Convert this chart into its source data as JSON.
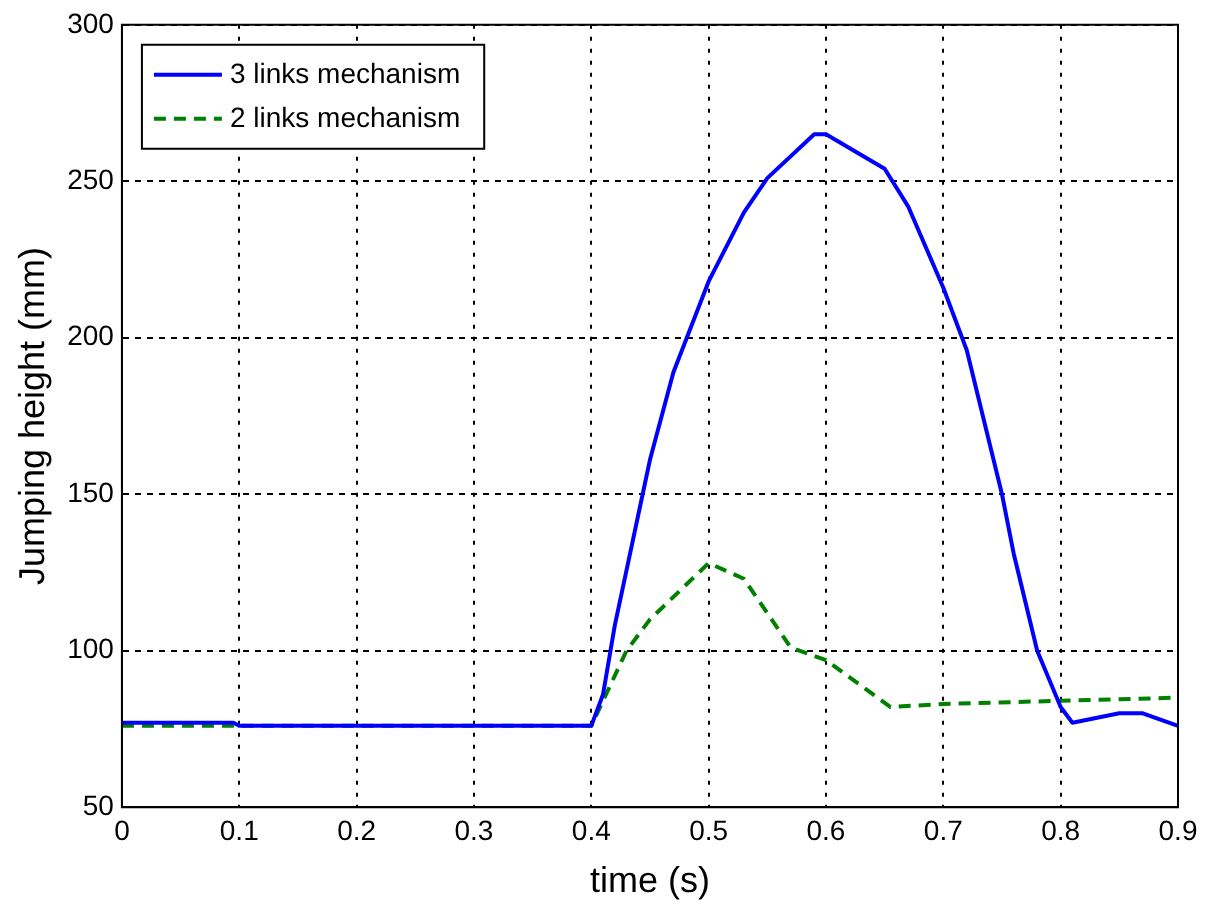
{
  "chart_data": {
    "type": "line",
    "xlabel": "time (s)",
    "ylabel": "Jumping height (mm)",
    "xlim": [
      0,
      0.9
    ],
    "xticks": [
      {
        "value": 0,
        "label": "0"
      },
      {
        "value": 0.1,
        "label": "0.1"
      },
      {
        "value": 0.2,
        "label": "0.2"
      },
      {
        "value": 0.3,
        "label": "0.3"
      },
      {
        "value": 0.4,
        "label": "0.4"
      },
      {
        "value": 0.5,
        "label": "0.5"
      },
      {
        "value": 0.6,
        "label": "0.6"
      },
      {
        "value": 0.7,
        "label": "0.7"
      },
      {
        "value": 0.8,
        "label": "0.8"
      },
      {
        "value": 0.9,
        "label": "0.9"
      }
    ],
    "ylim": [
      50,
      300
    ],
    "yticks": [
      50,
      100,
      150,
      200,
      250,
      300
    ],
    "grid": true,
    "legend": "top left",
    "marker": "none",
    "series": [
      {
        "name": "3 links mechanism",
        "color": "#0000ff",
        "line_style": "solid",
        "x": [
          0,
          0.095,
          0.1,
          0.4,
          0.41,
          0.42,
          0.45,
          0.47,
          0.5,
          0.53,
          0.55,
          0.59,
          0.6,
          0.65,
          0.67,
          0.7,
          0.72,
          0.75,
          0.76,
          0.78,
          0.8,
          0.81,
          0.85,
          0.87,
          0.9
        ],
        "values": [
          77,
          77,
          76,
          76,
          86,
          108,
          161,
          189,
          218,
          240,
          251,
          265,
          265,
          254,
          242,
          216,
          196,
          150,
          131,
          100,
          82,
          77,
          80,
          80,
          76
        ]
      },
      {
        "name": "2 links mechanism",
        "color": "#008000",
        "line_style": "dashed",
        "x": [
          0,
          0.4,
          0.43,
          0.45,
          0.5,
          0.53,
          0.57,
          0.6,
          0.655,
          0.7,
          0.8,
          0.9
        ],
        "values": [
          76,
          76,
          100,
          110,
          128,
          123,
          101,
          97,
          82,
          83,
          84,
          85
        ]
      }
    ]
  }
}
